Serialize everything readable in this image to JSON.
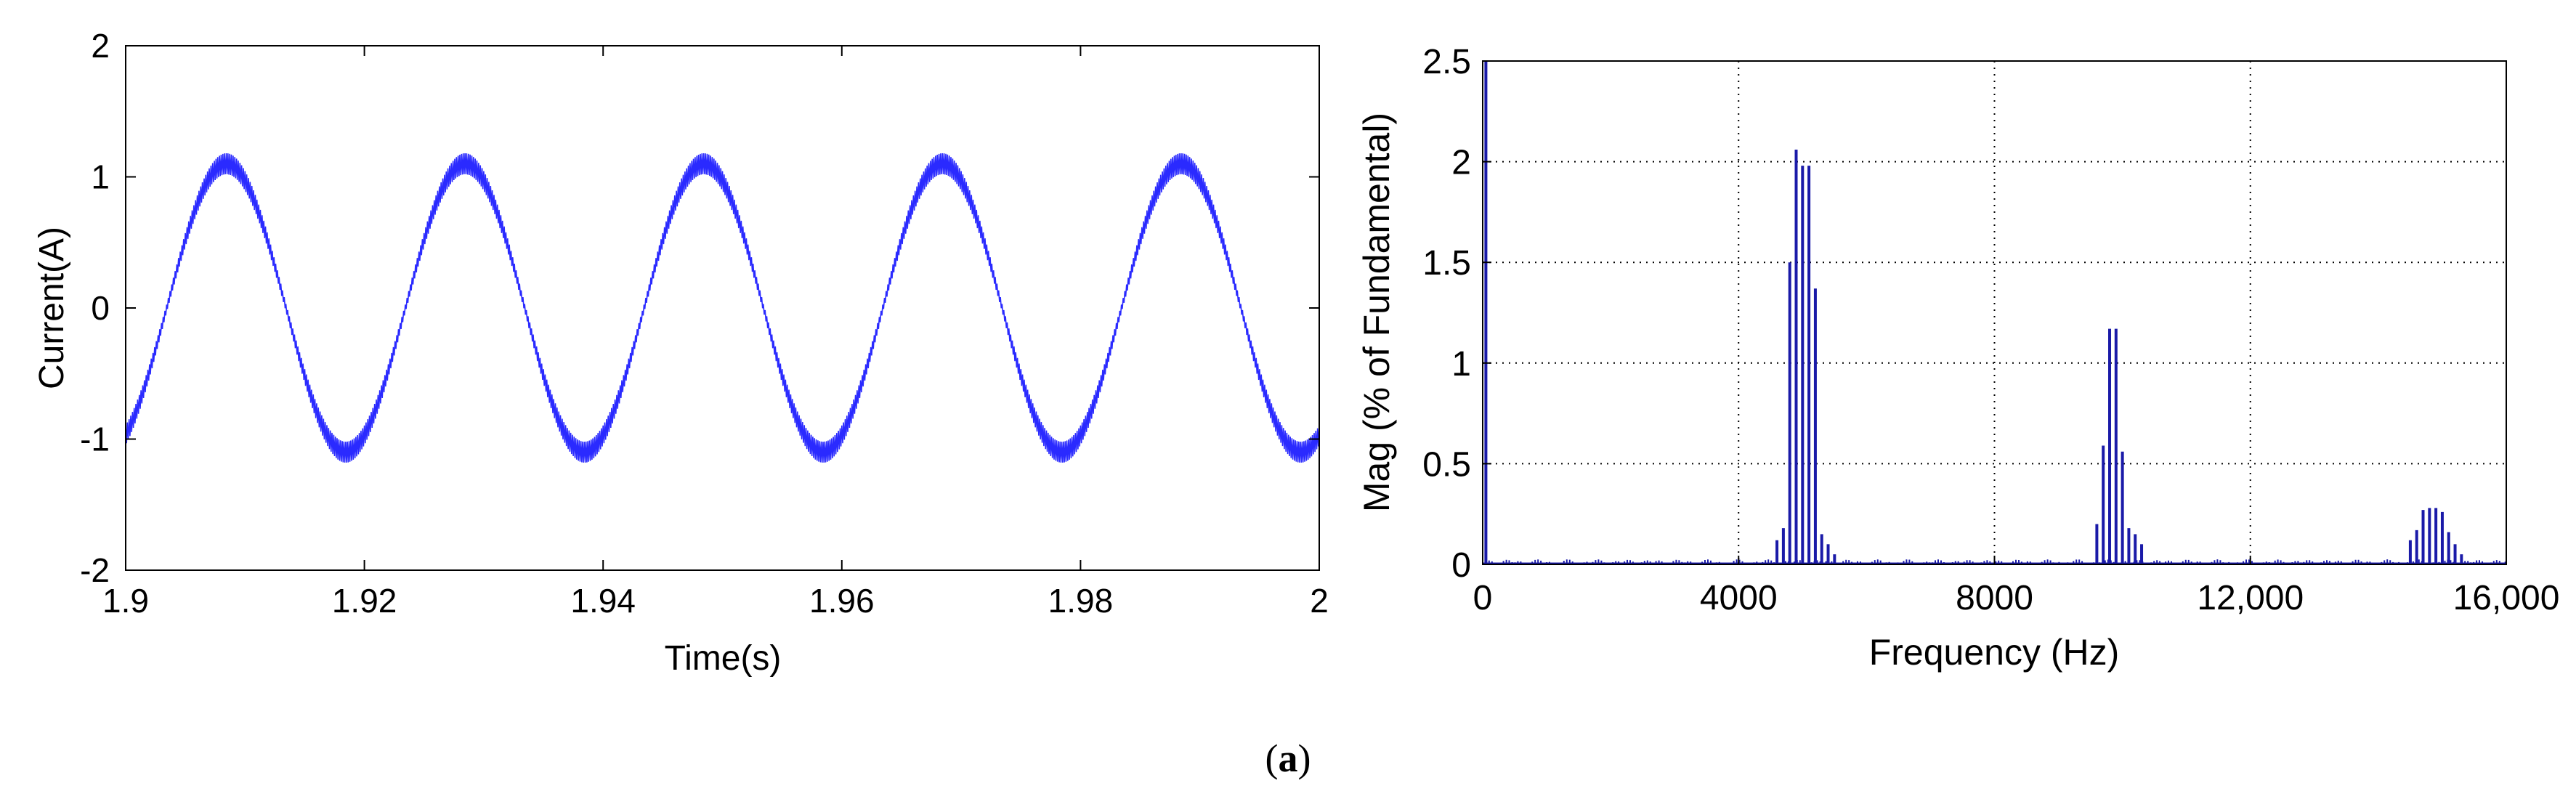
{
  "figure": {
    "caption_open": "(",
    "caption_letter": "a",
    "caption_close": ")"
  },
  "chart_data": [
    {
      "type": "line",
      "title": "",
      "xlabel": "Time(s)",
      "ylabel": "Current(A)",
      "xlim": [
        1.9,
        2.0
      ],
      "ylim": [
        -2,
        2
      ],
      "grid": false,
      "x_ticks": [
        1.9,
        1.92,
        1.94,
        1.96,
        1.98,
        2.0
      ],
      "x_tick_labels": [
        "1.9",
        "1.92",
        "1.94",
        "1.96",
        "1.98",
        "2"
      ],
      "y_ticks": [
        -2,
        -1,
        0,
        1,
        2
      ],
      "y_tick_labels": [
        "-2",
        "-1",
        "0",
        "1",
        "2"
      ],
      "color": "#2a2aff",
      "series": [
        {
          "fundamental_hz": 50,
          "amplitude_a": 1.1,
          "ripple_amplitude_a": 0.08,
          "x": [
            1.9,
            1.905,
            1.909,
            1.914,
            1.919,
            1.924,
            1.929,
            1.934,
            1.939,
            1.944,
            1.949,
            1.954,
            1.959,
            1.964,
            1.969,
            1.974,
            1.979,
            1.984,
            1.989,
            1.994,
            2.0
          ],
          "y": [
            -0.97,
            0.6,
            1.1,
            0.0,
            -1.1,
            0.0,
            1.1,
            0.0,
            -1.1,
            0.0,
            1.1,
            0.0,
            -1.1,
            0.0,
            1.1,
            0.0,
            -1.1,
            0.0,
            1.1,
            0.0,
            -1.05
          ]
        }
      ]
    },
    {
      "type": "bar",
      "title": "",
      "xlabel": "Frequency (Hz)",
      "ylabel": "Mag (% of Fundamental)",
      "xlim": [
        0,
        16000
      ],
      "ylim": [
        0,
        2.5
      ],
      "grid": true,
      "x_ticks": [
        0,
        4000,
        8000,
        12000,
        16000
      ],
      "x_tick_labels": [
        "0",
        "4000",
        "8000",
        "12,000",
        "16,000"
      ],
      "y_ticks": [
        0,
        0.5,
        1,
        1.5,
        2,
        2.5
      ],
      "y_tick_labels": [
        "0",
        "0.5",
        "1",
        "1.5",
        "2",
        "2.5"
      ],
      "color": "#1a1aa8",
      "series": [
        {
          "x": [
            50,
            4600,
            4700,
            4800,
            4900,
            5000,
            5100,
            5200,
            5300,
            5400,
            5500,
            9600,
            9700,
            9800,
            9900,
            10000,
            10100,
            10200,
            10300,
            14500,
            14600,
            14700,
            14800,
            14900,
            15000,
            15100,
            15200,
            15300
          ],
          "y": [
            2.5,
            0.12,
            0.18,
            1.5,
            2.06,
            1.98,
            1.98,
            1.37,
            0.15,
            0.1,
            0.05,
            0.2,
            0.59,
            1.17,
            1.17,
            0.56,
            0.18,
            0.15,
            0.1,
            0.12,
            0.17,
            0.27,
            0.28,
            0.28,
            0.26,
            0.16,
            0.1,
            0.05
          ]
        }
      ]
    }
  ]
}
